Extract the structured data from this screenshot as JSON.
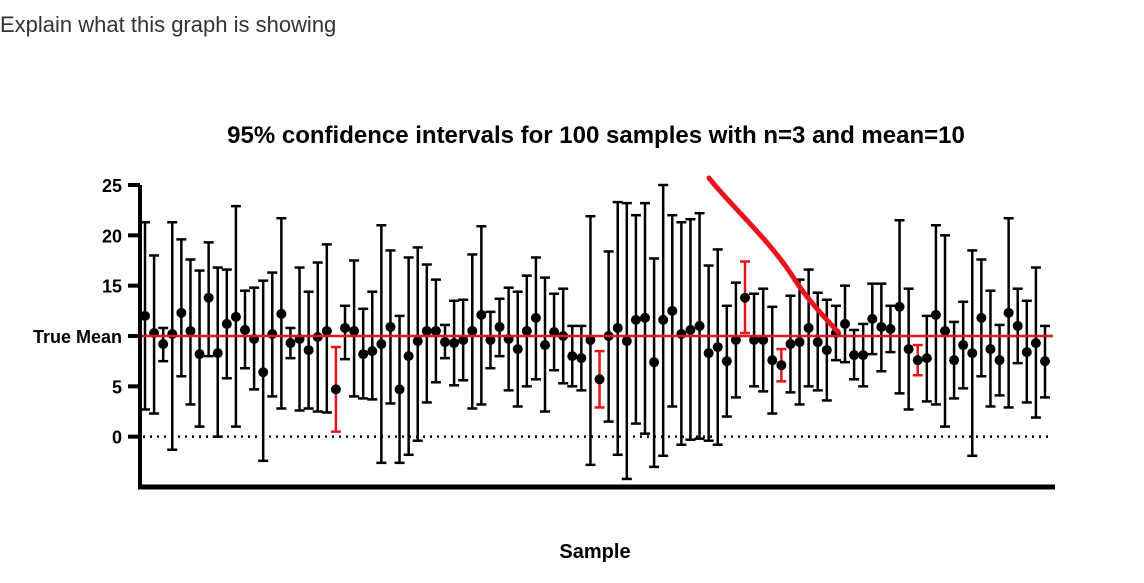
{
  "question": "Explain what this graph is showing",
  "colors": {
    "interval": "#000000",
    "miss": "#e8141b",
    "true_mean": "#e8141b",
    "annotation": "#e8141b"
  },
  "chart_data": {
    "type": "scatter",
    "title": "95% confidence intervals for 100 samples with n=3 and mean=10",
    "xlabel": "Sample",
    "ylabel": "",
    "ylim": [
      -5,
      25
    ],
    "yticks": [
      {
        "value": 0,
        "label": "0"
      },
      {
        "value": 5,
        "label": "5"
      },
      {
        "value": 10,
        "label": "True Mean"
      },
      {
        "value": 15,
        "label": "15"
      },
      {
        "value": 20,
        "label": "20"
      },
      {
        "value": 25,
        "label": "25"
      }
    ],
    "true_mean": 10,
    "zero_line_dotted": true,
    "samples": [
      {
        "mean": 12.0,
        "low": 2.7,
        "high": 21.3,
        "miss": false
      },
      {
        "mean": 10.3,
        "low": 2.3,
        "high": 18.0,
        "miss": false
      },
      {
        "mean": 9.2,
        "low": 7.5,
        "high": 10.8,
        "miss": false
      },
      {
        "mean": 10.2,
        "low": -1.3,
        "high": 21.3,
        "miss": false
      },
      {
        "mean": 12.3,
        "low": 6.0,
        "high": 19.6,
        "miss": false
      },
      {
        "mean": 10.5,
        "low": 3.2,
        "high": 17.6,
        "miss": false
      },
      {
        "mean": 8.2,
        "low": 1.0,
        "high": 16.5,
        "miss": false
      },
      {
        "mean": 13.8,
        "low": 8.0,
        "high": 19.3,
        "miss": false
      },
      {
        "mean": 8.3,
        "low": 0.0,
        "high": 16.8,
        "miss": false
      },
      {
        "mean": 11.2,
        "low": 5.8,
        "high": 16.6,
        "miss": false
      },
      {
        "mean": 11.9,
        "low": 1.0,
        "high": 22.9,
        "miss": false
      },
      {
        "mean": 10.6,
        "low": 6.8,
        "high": 14.5,
        "miss": false
      },
      {
        "mean": 9.7,
        "low": 4.7,
        "high": 14.8,
        "miss": false
      },
      {
        "mean": 6.4,
        "low": -2.4,
        "high": 15.5,
        "miss": false
      },
      {
        "mean": 10.2,
        "low": 4.0,
        "high": 16.3,
        "miss": false
      },
      {
        "mean": 12.2,
        "low": 2.8,
        "high": 21.7,
        "miss": false
      },
      {
        "mean": 9.3,
        "low": 7.8,
        "high": 10.8,
        "miss": false
      },
      {
        "mean": 9.7,
        "low": 2.6,
        "high": 16.8,
        "miss": false
      },
      {
        "mean": 8.6,
        "low": 2.8,
        "high": 14.4,
        "miss": false
      },
      {
        "mean": 9.9,
        "low": 2.5,
        "high": 17.3,
        "miss": false
      },
      {
        "mean": 10.5,
        "low": 2.4,
        "high": 19.1,
        "miss": false
      },
      {
        "mean": 4.7,
        "low": 0.5,
        "high": 8.9,
        "miss": true
      },
      {
        "mean": 10.8,
        "low": 7.7,
        "high": 13.0,
        "miss": false
      },
      {
        "mean": 10.5,
        "low": 4.0,
        "high": 17.5,
        "miss": false
      },
      {
        "mean": 8.2,
        "low": 3.8,
        "high": 12.7,
        "miss": false
      },
      {
        "mean": 8.5,
        "low": 3.7,
        "high": 14.4,
        "miss": false
      },
      {
        "mean": 9.2,
        "low": -2.6,
        "high": 21.0,
        "miss": false
      },
      {
        "mean": 10.9,
        "low": 3.3,
        "high": 18.5,
        "miss": false
      },
      {
        "mean": 4.7,
        "low": -2.6,
        "high": 12.0,
        "miss": false
      },
      {
        "mean": 8.0,
        "low": -1.8,
        "high": 17.8,
        "miss": false
      },
      {
        "mean": 9.5,
        "low": -0.4,
        "high": 18.8,
        "miss": false
      },
      {
        "mean": 10.5,
        "low": 3.4,
        "high": 17.1,
        "miss": false
      },
      {
        "mean": 10.5,
        "low": 5.4,
        "high": 15.6,
        "miss": false
      },
      {
        "mean": 9.4,
        "low": 7.8,
        "high": 11.1,
        "miss": false
      },
      {
        "mean": 9.3,
        "low": 5.1,
        "high": 13.5,
        "miss": false
      },
      {
        "mean": 9.6,
        "low": 5.6,
        "high": 13.6,
        "miss": false
      },
      {
        "mean": 10.5,
        "low": 2.8,
        "high": 18.1,
        "miss": false
      },
      {
        "mean": 12.1,
        "low": 3.2,
        "high": 20.9,
        "miss": false
      },
      {
        "mean": 9.6,
        "low": 6.8,
        "high": 12.4,
        "miss": false
      },
      {
        "mean": 10.9,
        "low": 8.0,
        "high": 13.7,
        "miss": false
      },
      {
        "mean": 9.7,
        "low": 4.6,
        "high": 14.8,
        "miss": false
      },
      {
        "mean": 8.7,
        "low": 3.0,
        "high": 14.4,
        "miss": false
      },
      {
        "mean": 10.5,
        "low": 5.0,
        "high": 16.0,
        "miss": false
      },
      {
        "mean": 11.8,
        "low": 5.7,
        "high": 17.8,
        "miss": false
      },
      {
        "mean": 9.1,
        "low": 2.5,
        "high": 15.8,
        "miss": false
      },
      {
        "mean": 10.4,
        "low": 6.6,
        "high": 14.2,
        "miss": false
      },
      {
        "mean": 10.0,
        "low": 5.3,
        "high": 14.7,
        "miss": false
      },
      {
        "mean": 8.0,
        "low": 5.0,
        "high": 11.0,
        "miss": false
      },
      {
        "mean": 7.8,
        "low": 4.6,
        "high": 11.0,
        "miss": false
      },
      {
        "mean": 9.6,
        "low": -2.8,
        "high": 21.9,
        "miss": false
      },
      {
        "mean": 5.7,
        "low": 2.9,
        "high": 8.5,
        "miss": true
      },
      {
        "mean": 10.0,
        "low": 1.5,
        "high": 18.4,
        "miss": false
      },
      {
        "mean": 10.8,
        "low": -1.8,
        "high": 23.3,
        "miss": false
      },
      {
        "mean": 9.5,
        "low": -4.2,
        "high": 23.2,
        "miss": false
      },
      {
        "mean": 11.6,
        "low": 1.3,
        "high": 22.0,
        "miss": false
      },
      {
        "mean": 11.8,
        "low": 0.3,
        "high": 23.2,
        "miss": false
      },
      {
        "mean": 7.4,
        "low": -3.0,
        "high": 17.7,
        "miss": false
      },
      {
        "mean": 11.6,
        "low": -1.9,
        "high": 25.0,
        "miss": false
      },
      {
        "mean": 12.5,
        "low": 3.0,
        "high": 22.0,
        "miss": false
      },
      {
        "mean": 10.2,
        "low": -0.8,
        "high": 21.3,
        "miss": false
      },
      {
        "mean": 10.6,
        "low": -0.3,
        "high": 21.6,
        "miss": false
      },
      {
        "mean": 11.0,
        "low": -0.2,
        "high": 22.2,
        "miss": false
      },
      {
        "mean": 8.3,
        "low": -0.4,
        "high": 17.0,
        "miss": false
      },
      {
        "mean": 8.9,
        "low": -0.8,
        "high": 18.6,
        "miss": false
      },
      {
        "mean": 7.5,
        "low": 2.0,
        "high": 13.0,
        "miss": false
      },
      {
        "mean": 9.6,
        "low": 3.9,
        "high": 15.3,
        "miss": false
      },
      {
        "mean": 13.8,
        "low": 10.3,
        "high": 17.4,
        "miss": true
      },
      {
        "mean": 9.6,
        "low": 5.0,
        "high": 14.2,
        "miss": false
      },
      {
        "mean": 9.6,
        "low": 4.5,
        "high": 14.7,
        "miss": false
      },
      {
        "mean": 7.6,
        "low": 2.3,
        "high": 12.9,
        "miss": false
      },
      {
        "mean": 7.1,
        "low": 5.5,
        "high": 8.7,
        "miss": true
      },
      {
        "mean": 9.2,
        "low": 4.4,
        "high": 14.0,
        "miss": false
      },
      {
        "mean": 9.4,
        "low": 3.2,
        "high": 15.6,
        "miss": false
      },
      {
        "mean": 10.8,
        "low": 5.0,
        "high": 16.6,
        "miss": false
      },
      {
        "mean": 9.4,
        "low": 4.6,
        "high": 14.3,
        "miss": false
      },
      {
        "mean": 8.6,
        "low": 3.6,
        "high": 13.6,
        "miss": false
      },
      {
        "mean": 10.3,
        "low": 7.6,
        "high": 13.0,
        "miss": false
      },
      {
        "mean": 11.2,
        "low": 7.4,
        "high": 15.0,
        "miss": false
      },
      {
        "mean": 8.1,
        "low": 5.7,
        "high": 10.6,
        "miss": false
      },
      {
        "mean": 8.1,
        "low": 5.0,
        "high": 11.2,
        "miss": false
      },
      {
        "mean": 11.7,
        "low": 8.2,
        "high": 15.2,
        "miss": false
      },
      {
        "mean": 10.9,
        "low": 6.5,
        "high": 15.2,
        "miss": false
      },
      {
        "mean": 10.7,
        "low": 8.4,
        "high": 13.0,
        "miss": false
      },
      {
        "mean": 12.9,
        "low": 4.3,
        "high": 21.5,
        "miss": false
      },
      {
        "mean": 8.7,
        "low": 2.7,
        "high": 14.7,
        "miss": false
      },
      {
        "mean": 7.6,
        "low": 6.1,
        "high": 9.1,
        "miss": true
      },
      {
        "mean": 7.8,
        "low": 3.5,
        "high": 12.0,
        "miss": false
      },
      {
        "mean": 12.1,
        "low": 3.2,
        "high": 21.0,
        "miss": false
      },
      {
        "mean": 10.5,
        "low": 1.0,
        "high": 20.0,
        "miss": false
      },
      {
        "mean": 7.6,
        "low": 3.8,
        "high": 11.4,
        "miss": false
      },
      {
        "mean": 9.1,
        "low": 4.8,
        "high": 13.4,
        "miss": false
      },
      {
        "mean": 8.3,
        "low": -1.9,
        "high": 18.5,
        "miss": false
      },
      {
        "mean": 11.8,
        "low": 6.0,
        "high": 17.6,
        "miss": false
      },
      {
        "mean": 8.7,
        "low": 3.0,
        "high": 14.5,
        "miss": false
      },
      {
        "mean": 7.6,
        "low": 4.1,
        "high": 11.1,
        "miss": false
      },
      {
        "mean": 12.3,
        "low": 2.9,
        "high": 21.7,
        "miss": false
      },
      {
        "mean": 11.0,
        "low": 7.3,
        "high": 14.7,
        "miss": false
      },
      {
        "mean": 8.4,
        "low": 3.4,
        "high": 13.5,
        "miss": false
      },
      {
        "mean": 9.3,
        "low": 1.9,
        "high": 16.8,
        "miss": false
      },
      {
        "mean": 7.5,
        "low": 3.9,
        "high": 11.0,
        "miss": false
      }
    ]
  }
}
